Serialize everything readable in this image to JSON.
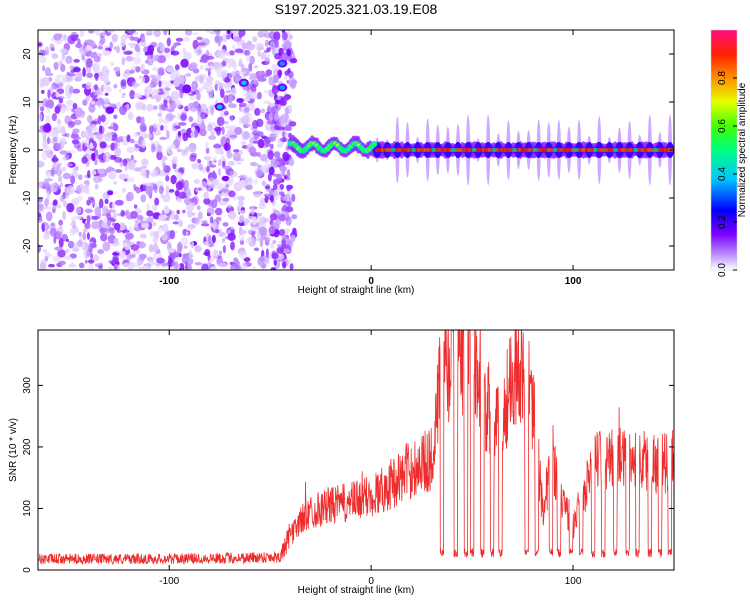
{
  "title": "S197.2025.321.03.19.E08",
  "colors": {
    "snr_line": "#ee2c2c",
    "plot_bg": "#ffffff",
    "frame": "#000000",
    "speckle": "#8a2be2"
  },
  "chart_data": [
    {
      "type": "heatmap",
      "title": "S197.2025.321.03.19.E08",
      "xlabel": "Height of straight line (km)",
      "ylabel": "Frequency (Hz)",
      "xlim": [
        -165,
        150
      ],
      "ylim": [
        -25,
        25
      ],
      "xticks": [
        -100,
        0,
        100
      ],
      "yticks": [
        -20,
        -10,
        0,
        10,
        20
      ],
      "xtick_labels": [
        "-100",
        "0",
        "100"
      ],
      "ytick_labels": [
        "-20",
        "-10",
        "0",
        "10",
        "20"
      ],
      "colorbar": {
        "label": "Normalized spectral amplitude",
        "range": [
          0,
          1
        ],
        "ticks": [
          0.0,
          0.2,
          0.4,
          0.6,
          0.8
        ],
        "tick_labels": [
          "0.0",
          "0.2",
          "0.4",
          "0.6",
          "0.8"
        ]
      },
      "noise_region_km": [
        -165,
        -40
      ],
      "signal_track": {
        "frequency_hz": 0,
        "start_km": -40,
        "end_km": 148,
        "wobble_km": [
          -40,
          0
        ],
        "pulse_spacing_km": 10
      },
      "bright_spots": [
        {
          "x_km": -75,
          "f_hz": 9,
          "amp": 0.3
        },
        {
          "x_km": -63,
          "f_hz": 14,
          "amp": 0.3
        },
        {
          "x_km": -44,
          "f_hz": 18,
          "amp": 0.25
        },
        {
          "x_km": -44,
          "f_hz": 13,
          "amp": 0.25
        }
      ]
    },
    {
      "type": "line",
      "xlabel": "Height of straight line (km)",
      "ylabel": "SNR (10 * v/v)",
      "xlim": [
        -165,
        150
      ],
      "ylim": [
        0,
        390
      ],
      "xticks": [
        -100,
        0,
        100
      ],
      "yticks": [
        0,
        100,
        200,
        300
      ],
      "xtick_labels": [
        "-100",
        "0",
        "100"
      ],
      "ytick_labels": [
        "0",
        "100",
        "200",
        "300"
      ],
      "series": [
        {
          "name": "SNR",
          "x": [
            -165,
            -140,
            -110,
            -80,
            -60,
            -45,
            -40,
            -35,
            -30,
            -20,
            -10,
            0,
            10,
            20,
            30,
            32,
            35,
            40,
            45,
            50,
            55,
            60,
            65,
            70,
            75,
            80,
            85,
            90,
            95,
            100,
            105,
            110,
            120,
            130,
            140,
            150
          ],
          "values": [
            18,
            18,
            18,
            19,
            20,
            22,
            55,
            80,
            95,
            105,
            110,
            120,
            140,
            165,
            180,
            250,
            320,
            340,
            350,
            360,
            300,
            220,
            240,
            330,
            340,
            270,
            100,
            180,
            110,
            70,
            120,
            175,
            180,
            180,
            175,
            170
          ],
          "dips_km": [
            35,
            42,
            47,
            50,
            55,
            60,
            64,
            77,
            82,
            89,
            93,
            99,
            104,
            110,
            115,
            121,
            127,
            132,
            138,
            143,
            148
          ],
          "dip_level": 20
        }
      ]
    }
  ]
}
